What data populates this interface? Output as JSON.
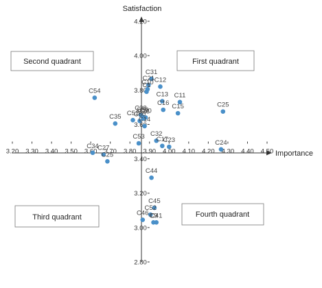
{
  "chart_data": {
    "type": "scatter",
    "xlabel": "Importance",
    "ylabel": "Satisfaction",
    "xlim": [
      3.2,
      4.5
    ],
    "ylim": [
      2.8,
      4.2
    ],
    "x_ticks": [
      "3.20",
      "3.30",
      "3.40",
      "3.50",
      "3.60",
      "3.70",
      "3.80",
      "3.90",
      "4.00",
      "4.10",
      "4.20",
      "4.30",
      "4.40",
      "4.50"
    ],
    "y_ticks": [
      "2.80",
      "3.00",
      "3.20",
      "3.40",
      "3.60",
      "3.80",
      "4.00",
      "4.20"
    ],
    "crossing": {
      "x": 3.9,
      "y": 3.5
    },
    "point_color": "#4a90c9",
    "quadrants": [
      "First quadrant",
      "Second quadrant",
      "Third quadrant",
      "Fourth quadrant"
    ],
    "points": [
      {
        "label": "C54",
        "x": 3.62,
        "y": 3.755
      },
      {
        "label": "C31",
        "x": 3.91,
        "y": 3.865
      },
      {
        "label": "C12",
        "x": 3.955,
        "y": 3.82
      },
      {
        "label": "C21",
        "x": 3.895,
        "y": 3.83
      },
      {
        "label": "C10",
        "x": 3.89,
        "y": 3.805
      },
      {
        "label": "C1",
        "x": 3.885,
        "y": 3.79
      },
      {
        "label": "C13",
        "x": 3.965,
        "y": 3.735
      },
      {
        "label": "C16",
        "x": 3.97,
        "y": 3.685
      },
      {
        "label": "C11",
        "x": 4.055,
        "y": 3.73
      },
      {
        "label": "C15",
        "x": 4.045,
        "y": 3.665
      },
      {
        "label": "C25",
        "x": 4.275,
        "y": 3.675
      },
      {
        "label": "C35",
        "x": 3.725,
        "y": 3.605
      },
      {
        "label": "C51",
        "x": 3.815,
        "y": 3.625
      },
      {
        "label": "C38",
        "x": 3.855,
        "y": 3.655
      },
      {
        "label": "C39",
        "x": 3.865,
        "y": 3.645
      },
      {
        "label": "C26",
        "x": 3.87,
        "y": 3.635
      },
      {
        "label": "C30",
        "x": 3.88,
        "y": 3.64
      },
      {
        "label": "C60",
        "x": 3.85,
        "y": 3.62
      },
      {
        "label": "C14",
        "x": 3.875,
        "y": 3.59
      },
      {
        "label": "C32",
        "x": 3.935,
        "y": 3.505
      },
      {
        "label": "C53",
        "x": 3.845,
        "y": 3.49
      },
      {
        "label": "C17",
        "x": 3.965,
        "y": 3.475
      },
      {
        "label": "C23",
        "x": 4.0,
        "y": 3.47
      },
      {
        "label": "C24",
        "x": 4.265,
        "y": 3.455
      },
      {
        "label": "C34",
        "x": 3.61,
        "y": 3.435
      },
      {
        "label": "C27",
        "x": 3.665,
        "y": 3.425
      },
      {
        "label": "C25",
        "x": 3.685,
        "y": 3.385
      },
      {
        "label": "C44",
        "x": 3.91,
        "y": 3.29
      },
      {
        "label": "C45",
        "x": 3.925,
        "y": 3.115
      },
      {
        "label": "C52",
        "x": 3.905,
        "y": 3.075
      },
      {
        "label": "C46",
        "x": 3.865,
        "y": 3.045
      },
      {
        "label": "C41",
        "x": 3.935,
        "y": 3.03
      },
      {
        "label": "C9",
        "x": 3.92,
        "y": 3.03
      }
    ]
  }
}
